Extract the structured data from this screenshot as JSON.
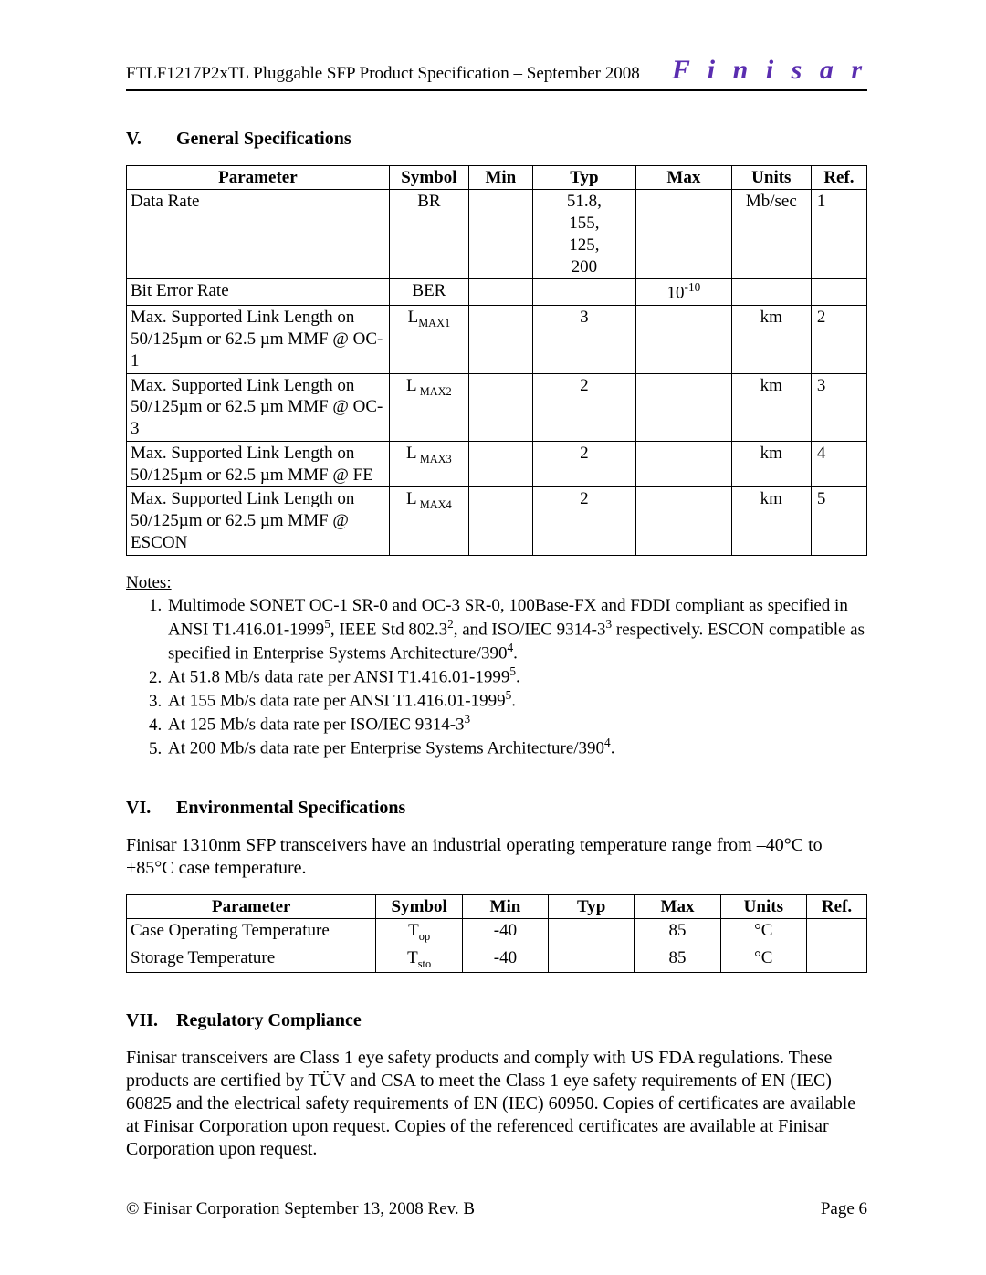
{
  "header": {
    "title": "FTLF1217P2xTL Pluggable SFP Product Specification – September 2008",
    "logo": "F i n i s a r"
  },
  "sectionV": {
    "num": "V.",
    "title": "General Specifications",
    "columns": [
      "Parameter",
      "Symbol",
      "Min",
      "Typ",
      "Max",
      "Units",
      "Ref."
    ],
    "rows": [
      {
        "param": "Data Rate",
        "symbol": "BR",
        "min": "",
        "typ": "51.8, 155, 125, 200",
        "max": "",
        "units": "Mb/sec",
        "ref": "1"
      },
      {
        "param": "Bit Error Rate",
        "symbol": "BER",
        "min": "",
        "typ": "",
        "max_html": "10<span class='sup'>-10</span>",
        "units": "",
        "ref": ""
      },
      {
        "param": "Max. Supported Link Length on 50/125µm or 62.5 µm MMF @ OC-1",
        "symbol_html": "L<span class='sub'>MAX1</span>",
        "min": "",
        "typ": "3",
        "max": "",
        "units": "km",
        "ref": "2"
      },
      {
        "param": "Max. Supported Link Length on 50/125µm or 62.5 µm MMF @ OC-3",
        "symbol_html": "L<span class='sub'> MAX2</span>",
        "min": "",
        "typ": "2",
        "max": "",
        "units": "km",
        "ref": "3"
      },
      {
        "param": "Max. Supported Link Length on 50/125µm or 62.5 µm MMF @ FE",
        "symbol_html": "L<span class='sub'> MAX3</span>",
        "min": "",
        "typ": "2",
        "max": "",
        "units": "km",
        "ref": "4"
      },
      {
        "param": "Max. Supported Link Length on 50/125µm or 62.5 µm MMF @ ESCON",
        "symbol_html": "L<span class='sub'> MAX4</span>",
        "min": "",
        "typ": "2",
        "max": "",
        "units": "km",
        "ref": "5"
      }
    ],
    "notes_label": "Notes:",
    "notes": [
      "Multimode SONET OC-1 SR-0 and OC-3 SR-0, 100Base-FX and FDDI compliant as specified in ANSI T1.416.01-1999<span class='sup'>5</span>, IEEE Std 802.3<span class='sup'>2</span>, and ISO/IEC 9314-3<span class='sup'>3</span> respectively.  ESCON compatible as specified in Enterprise Systems Architecture/390<span class='sup'>4</span>.",
      "At 51.8 Mb/s data rate per ANSI T1.416.01-1999<span class='sup'>5</span>.",
      "At 155 Mb/s data rate per ANSI T1.416.01-1999<span class='sup'>5</span>.",
      "At 125 Mb/s data rate per ISO/IEC 9314-3<span class='sup'>3</span>",
      "At 200 Mb/s data rate per Enterprise Systems Architecture/390<span class='sup'>4</span>."
    ]
  },
  "sectionVI": {
    "num": "VI.",
    "title": "Environmental Specifications",
    "intro": "Finisar 1310nm SFP transceivers have an industrial operating temperature range from –40°C to +85°C case temperature.",
    "columns": [
      "Parameter",
      "Symbol",
      "Min",
      "Typ",
      "Max",
      "Units",
      "Ref."
    ],
    "rows": [
      {
        "param": "Case Operating Temperature",
        "symbol_html": "T<span class='sub'>op</span>",
        "min": "-40",
        "typ": "",
        "max": "85",
        "units": "°C",
        "ref": ""
      },
      {
        "param": "Storage Temperature",
        "symbol_html": "T<span class='sub'>sto</span>",
        "min": "-40",
        "typ": "",
        "max": "85",
        "units": "°C",
        "ref": ""
      }
    ]
  },
  "sectionVII": {
    "num": "VII.",
    "title": "Regulatory Compliance",
    "body": "Finisar transceivers are Class 1 eye safety products and comply with US FDA regulations.  These products are certified by TÜV and CSA to meet the Class 1 eye safety requirements of EN (IEC) 60825 and the electrical safety requirements of EN (IEC) 60950.  Copies of certificates are available at Finisar Corporation upon request.  Copies of the referenced certificates are available at Finisar Corporation upon request."
  },
  "footer": {
    "left": "© Finisar Corporation September 13, 2008 Rev. B",
    "right": "Page 6"
  }
}
